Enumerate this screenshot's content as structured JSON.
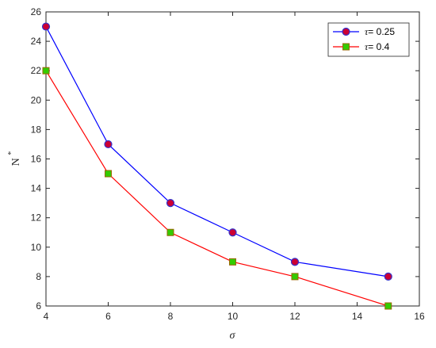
{
  "chart_data": {
    "type": "line",
    "x": [
      4,
      6,
      8,
      10,
      12,
      15
    ],
    "series": [
      {
        "name": "τ= 0.25",
        "legend_symbol": "τ",
        "legend_value": "= 0.25",
        "values": [
          25,
          17,
          13,
          11,
          9,
          8
        ],
        "line_color": "#0000ff",
        "marker": "circle",
        "marker_fill": "#cc0033",
        "marker_edge": "#3333cc"
      },
      {
        "name": "τ= 0.4",
        "legend_symbol": "τ",
        "legend_value": "= 0.4",
        "values": [
          22,
          15,
          11,
          9,
          8,
          6
        ],
        "line_color": "#ff0000",
        "marker": "square",
        "marker_fill": "#33cc00",
        "marker_edge": "#996600"
      }
    ],
    "xlabel": "σ",
    "ylabel_base": "N",
    "ylabel_sup": "*",
    "xlim": [
      4,
      16
    ],
    "ylim": [
      6,
      26
    ],
    "xticks": [
      4,
      6,
      8,
      10,
      12,
      14,
      16
    ],
    "yticks": [
      6,
      8,
      10,
      12,
      14,
      16,
      18,
      20,
      22,
      24,
      26
    ],
    "grid": false,
    "legend_position": "top-right"
  }
}
